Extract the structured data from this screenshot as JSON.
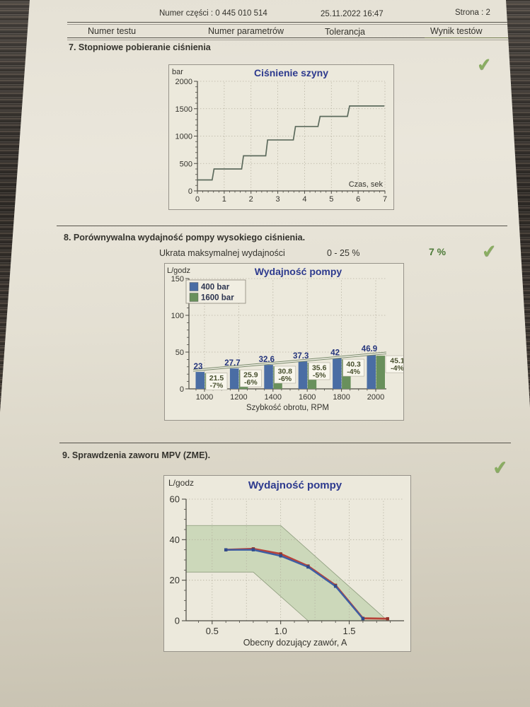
{
  "icons": {
    "check": "✔"
  },
  "document": {
    "header": {
      "part_number": "Numer części : 0 445 010 514",
      "datetime": "25.11.2022  16:47",
      "page": "Strona : 2",
      "columns": [
        "Numer testu",
        "Numer parametrów",
        "Tolerancja",
        "Wynik testów"
      ]
    },
    "sections": [
      {
        "id": 7,
        "title": "7. Stopniowe pobieranie ciśnienia",
        "passed": true
      },
      {
        "id": 8,
        "title": "8. Porównywalna wydajność pompy wysokiego ciśnienia.",
        "passed": true,
        "parameter": {
          "label": "Ukrata maksymalnej wydajności",
          "tolerance": "0 - 25 %",
          "result": "7 %"
        }
      },
      {
        "id": 9,
        "title": "9. Sprawdzenia zaworu MPV (ZME).",
        "passed": true
      }
    ]
  },
  "colors": {
    "title_blue": "#2d3a8e",
    "bar_blue": "#4a6da4",
    "bar_green": "#69905c",
    "band_green": "#ccd8ba",
    "line_red": "#b8433a",
    "line_blue": "#3d5fa5",
    "marker_red": "#93362c",
    "marker_blue": "#2f4c8d",
    "check_green": "#8aad62",
    "result_green": "#4c7a38",
    "step_line": "#5d6b5d"
  },
  "chart_data": [
    {
      "type": "line",
      "variant": "step",
      "title": "Ciśnienie szyny",
      "ylabel": "bar",
      "xlabel": "Czas, sek",
      "xlim": [
        0,
        7
      ],
      "ylim": [
        0,
        2000
      ],
      "xticks": [
        "0",
        "1",
        "2",
        "3",
        "4",
        "5",
        "6",
        "7"
      ],
      "yticks": [
        "0",
        "500",
        "1000",
        "1500",
        "2000"
      ],
      "grid": true,
      "legend_position": "none",
      "series": [
        {
          "name": "cisnienie-szyny",
          "color": "#5d6b5d",
          "points": [
            [
              0,
              200
            ],
            [
              0.55,
              200
            ],
            [
              0.62,
              400
            ],
            [
              1.65,
              400
            ],
            [
              1.72,
              640
            ],
            [
              2.55,
              640
            ],
            [
              2.62,
              930
            ],
            [
              3.58,
              930
            ],
            [
              3.66,
              1175
            ],
            [
              4.5,
              1175
            ],
            [
              4.58,
              1360
            ],
            [
              5.6,
              1360
            ],
            [
              5.68,
              1550
            ],
            [
              6.98,
              1550
            ]
          ]
        }
      ]
    },
    {
      "type": "bar",
      "title": "Wydajność pompy",
      "ylabel": "L/godz",
      "xlabel": "Szybkość obrotu, RPM",
      "ylim": [
        0,
        150
      ],
      "yticks": [
        "0",
        "50",
        "100",
        "150"
      ],
      "categories": [
        "1000",
        "1200",
        "1400",
        "1600",
        "1800",
        "2000"
      ],
      "grid": true,
      "legend_position": "top-left",
      "legend": [
        {
          "label": "400 bar",
          "color": "#4a6da4"
        },
        {
          "label": "1600 bar",
          "color": "#69905c"
        }
      ],
      "series": [
        {
          "name": "400 bar",
          "color": "#4a6da4",
          "values": [
            23,
            27.7,
            32.6,
            37.3,
            42,
            46.9
          ],
          "labels": [
            "23",
            "27.7",
            "32.6",
            "37.3",
            "42",
            "46.9"
          ]
        },
        {
          "name": "1600 bar",
          "color": "#69905c",
          "values": [
            21.5,
            25.9,
            30.8,
            35.6,
            40.3,
            45.1
          ],
          "labels": [
            "21.5",
            "25.9",
            "30.8",
            "35.6",
            "40.3",
            "45.1"
          ],
          "pct_labels": [
            "-7%",
            "-6%",
            "-6%",
            "-5%",
            "-4%",
            "-4%"
          ]
        }
      ],
      "tolerance_band": {
        "lower": [
          24,
          47.6
        ],
        "upper": [
          26.3,
          50
        ]
      }
    },
    {
      "type": "line",
      "title": "Wydajność pompy",
      "ylabel": "L/godz",
      "xlabel": "Obecny dozujący zawór, A",
      "xlim": [
        0.31,
        1.9
      ],
      "ylim": [
        0,
        60
      ],
      "xticks": [
        "0.5",
        "1.0",
        "1.5"
      ],
      "yticks": [
        "0",
        "20",
        "40",
        "60"
      ],
      "grid": true,
      "legend_position": "none",
      "band": {
        "color": "#ccd8ba",
        "upper": [
          [
            0.31,
            47
          ],
          [
            1.0,
            47
          ],
          [
            1.78,
            0
          ]
        ],
        "lower": [
          [
            0.31,
            24
          ],
          [
            0.8,
            24
          ],
          [
            1.2,
            0
          ]
        ]
      },
      "series": [
        {
          "name": "measured-red",
          "color": "#b8433a",
          "points": [
            [
              0.6,
              35
            ],
            [
              0.8,
              35.5
            ],
            [
              1.0,
              33
            ],
            [
              1.2,
              27
            ],
            [
              1.4,
              17.5
            ],
            [
              1.6,
              1.2
            ],
            [
              1.78,
              1
            ]
          ]
        },
        {
          "name": "measured-blue",
          "color": "#3d5fa5",
          "points": [
            [
              0.6,
              35
            ],
            [
              0.8,
              35
            ],
            [
              1.0,
              32
            ],
            [
              1.2,
              26.5
            ],
            [
              1.4,
              17
            ],
            [
              1.6,
              1
            ]
          ]
        }
      ]
    }
  ]
}
